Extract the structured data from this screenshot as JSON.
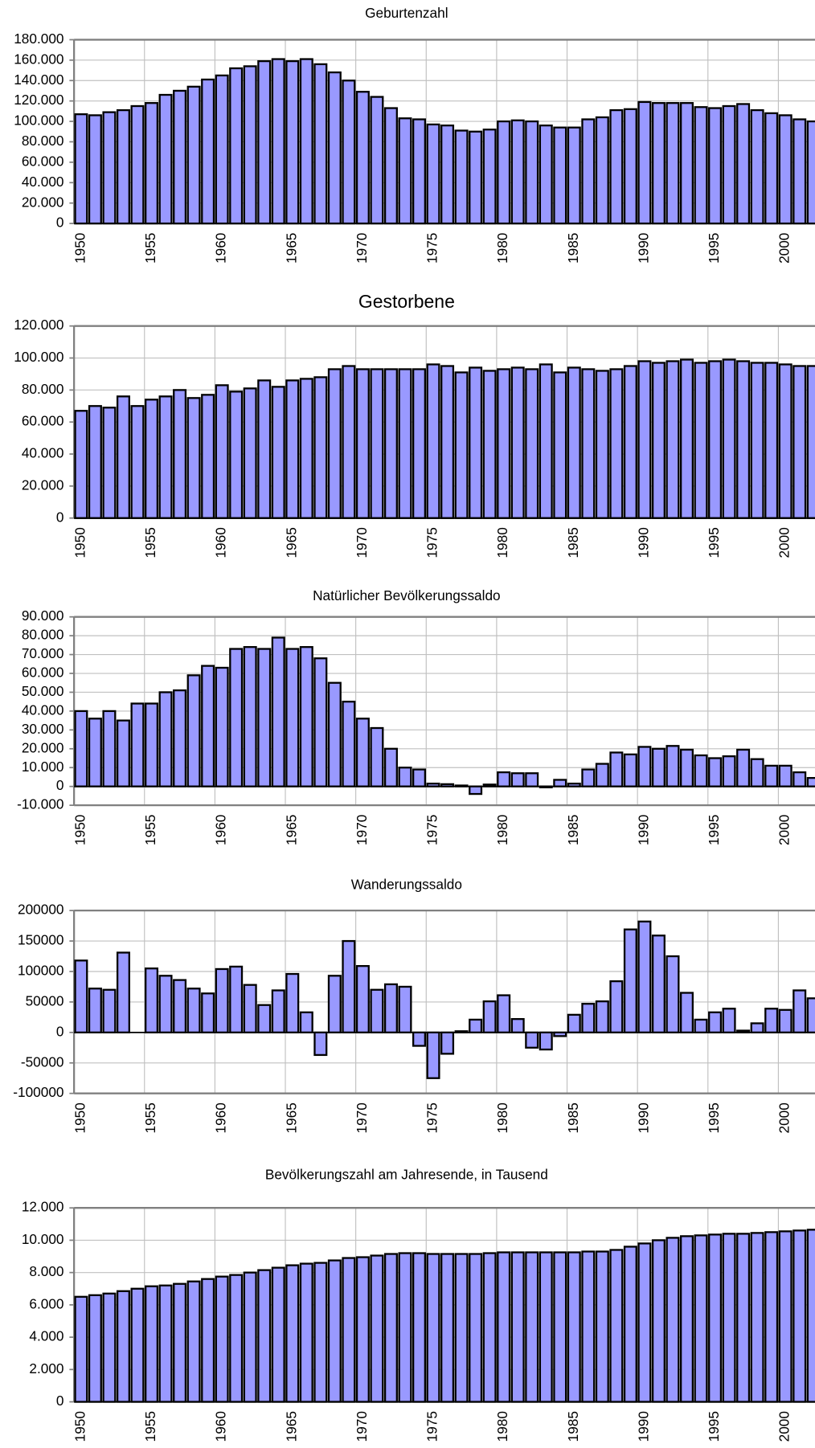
{
  "chart_data": [
    {
      "type": "bar",
      "title": "Geburtenzahl",
      "color": "#9999ff",
      "grid": true,
      "categories": [
        "1950",
        null,
        null,
        null,
        null,
        "1955",
        null,
        null,
        null,
        null,
        "1960",
        null,
        null,
        null,
        null,
        "1965",
        null,
        null,
        null,
        null,
        "1970",
        null,
        null,
        null,
        null,
        "1975",
        null,
        null,
        null,
        null,
        "1980",
        null,
        null,
        null,
        null,
        "1985",
        null,
        null,
        null,
        null,
        "1990",
        null,
        null,
        null,
        null,
        "1995",
        null,
        null,
        null,
        null,
        "2000",
        null,
        null
      ],
      "values": [
        107000,
        106000,
        109000,
        111000,
        115000,
        118000,
        126000,
        130000,
        134000,
        141000,
        145000,
        152000,
        154000,
        159000,
        161000,
        159000,
        161000,
        156000,
        148000,
        140000,
        129000,
        124000,
        113000,
        103000,
        102000,
        97000,
        96000,
        91000,
        90000,
        92000,
        100000,
        101000,
        100000,
        96000,
        94000,
        94000,
        102000,
        104000,
        111000,
        112000,
        119000,
        118000,
        118000,
        118000,
        114000,
        113000,
        115000,
        117000,
        111000,
        108000,
        106000,
        102000,
        100000
      ],
      "ylim": [
        0,
        180000
      ],
      "yticks": [
        0,
        {
          "value": 20000,
          "label": "20.000"
        },
        {
          "value": 40000,
          "label": "40.000"
        },
        {
          "value": 60000,
          "label": "60.000"
        },
        {
          "value": 80000,
          "label": "80.000"
        },
        {
          "value": 100000,
          "label": "100.000"
        },
        {
          "value": 120000,
          "label": "120.000"
        },
        {
          "value": 140000,
          "label": "140.000"
        },
        {
          "value": 160000,
          "label": "160.000"
        },
        {
          "value": 180000,
          "label": "180.000"
        }
      ]
    },
    {
      "type": "bar",
      "title": "Gestorbene",
      "color": "#9999ff",
      "grid": true,
      "categories": [
        "1950",
        null,
        null,
        null,
        null,
        "1955",
        null,
        null,
        null,
        null,
        "1960",
        null,
        null,
        null,
        null,
        "1965",
        null,
        null,
        null,
        null,
        "1970",
        null,
        null,
        null,
        null,
        "1975",
        null,
        null,
        null,
        null,
        "1980",
        null,
        null,
        null,
        null,
        "1985",
        null,
        null,
        null,
        null,
        "1990",
        null,
        null,
        null,
        null,
        "1995",
        null,
        null,
        null,
        null,
        "2000",
        null,
        null
      ],
      "values": [
        67000,
        70000,
        69000,
        76000,
        70000,
        74000,
        76000,
        80000,
        75000,
        77000,
        83000,
        79000,
        81000,
        86000,
        82000,
        86000,
        87000,
        88000,
        93000,
        95000,
        93000,
        93000,
        93000,
        93000,
        93000,
        96000,
        95000,
        91000,
        94000,
        92000,
        93000,
        94000,
        93000,
        96000,
        91000,
        94000,
        93000,
        92000,
        93000,
        95000,
        98000,
        97000,
        98000,
        99000,
        97000,
        98000,
        99000,
        98000,
        97000,
        97000,
        96000,
        95000,
        95000
      ],
      "ylim": [
        0,
        120000
      ],
      "yticks": [
        0,
        {
          "value": 20000,
          "label": "20.000"
        },
        {
          "value": 40000,
          "label": "40.000"
        },
        {
          "value": 60000,
          "label": "60.000"
        },
        {
          "value": 80000,
          "label": "80.000"
        },
        {
          "value": 100000,
          "label": "100.000"
        },
        {
          "value": 120000,
          "label": "120.000"
        }
      ]
    },
    {
      "type": "bar",
      "title": "Natürlicher Bevölkerungssaldo",
      "color": "#9999ff",
      "grid": true,
      "categories": [
        "1950",
        null,
        null,
        null,
        null,
        "1955",
        null,
        null,
        null,
        null,
        "1960",
        null,
        null,
        null,
        null,
        "1965",
        null,
        null,
        null,
        null,
        "1970",
        null,
        null,
        null,
        null,
        "1975",
        null,
        null,
        null,
        null,
        "1980",
        null,
        null,
        null,
        null,
        "1985",
        null,
        null,
        null,
        null,
        "1990",
        null,
        null,
        null,
        null,
        "1995",
        null,
        null,
        null,
        null,
        "2000",
        null,
        null
      ],
      "values": [
        40000,
        36000,
        40000,
        35000,
        44000,
        44000,
        50000,
        51000,
        59000,
        64000,
        63000,
        73000,
        74000,
        73000,
        79000,
        73000,
        74000,
        68000,
        55000,
        45000,
        36000,
        31000,
        20000,
        10000,
        9000,
        1500,
        1200,
        500,
        -4000,
        1000,
        7500,
        7000,
        7000,
        -500,
        3500,
        1500,
        9000,
        12000,
        18000,
        17000,
        21000,
        20000,
        21500,
        19500,
        16500,
        15000,
        16000,
        19500,
        14500,
        11000,
        11000,
        7500,
        4500
      ],
      "ylim": [
        -10000,
        90000
      ],
      "yticks": [
        {
          "value": -10000,
          "label": "-10.000"
        },
        0,
        {
          "value": 10000,
          "label": "10.000"
        },
        {
          "value": 20000,
          "label": "20.000"
        },
        {
          "value": 30000,
          "label": "30.000"
        },
        {
          "value": 40000,
          "label": "40.000"
        },
        {
          "value": 50000,
          "label": "50.000"
        },
        {
          "value": 60000,
          "label": "60.000"
        },
        {
          "value": 70000,
          "label": "70.000"
        },
        {
          "value": 80000,
          "label": "80.000"
        },
        {
          "value": 90000,
          "label": "90.000"
        }
      ]
    },
    {
      "type": "bar",
      "title": "Wanderungssaldo",
      "color": "#9999ff",
      "grid": true,
      "categories": [
        "1950",
        null,
        null,
        null,
        null,
        "1955",
        null,
        null,
        null,
        null,
        "1960",
        null,
        null,
        null,
        null,
        "1965",
        null,
        null,
        null,
        null,
        "1970",
        null,
        null,
        null,
        null,
        "1975",
        null,
        null,
        null,
        null,
        "1980",
        null,
        null,
        null,
        null,
        "1985",
        null,
        null,
        null,
        null,
        "1990",
        null,
        null,
        null,
        null,
        "1995",
        null,
        null,
        null,
        null,
        "2000",
        null,
        null
      ],
      "values": [
        118000,
        72000,
        70000,
        131000,
        null,
        105000,
        93000,
        86000,
        72000,
        64000,
        104000,
        108000,
        78000,
        45000,
        69000,
        96000,
        33000,
        -37000,
        93000,
        150000,
        109000,
        70000,
        79000,
        75000,
        -22000,
        -75000,
        -35000,
        2000,
        21000,
        51000,
        61000,
        22000,
        -25000,
        -28000,
        -6000,
        29000,
        47000,
        51000,
        84000,
        169000,
        182000,
        159000,
        125000,
        65000,
        21000,
        33000,
        39000,
        3000,
        15000,
        39000,
        37000,
        69000,
        56000
      ],
      "ylim": [
        -100000,
        200000
      ],
      "yticks": [
        -100000,
        -50000,
        0,
        50000,
        100000,
        150000,
        200000
      ]
    },
    {
      "type": "bar",
      "title": "Bevölkerungszahl am Jahresende, in Tausend",
      "color": "#9999ff",
      "grid": true,
      "categories": [
        "1950",
        null,
        null,
        null,
        null,
        "1955",
        null,
        null,
        null,
        null,
        "1960",
        null,
        null,
        null,
        null,
        "1965",
        null,
        null,
        null,
        null,
        "1970",
        null,
        null,
        null,
        null,
        "1975",
        null,
        null,
        null,
        null,
        "1980",
        null,
        null,
        null,
        null,
        "1985",
        null,
        null,
        null,
        null,
        "1990",
        null,
        null,
        null,
        null,
        "1995",
        null,
        null,
        null,
        null,
        "2000",
        null,
        null
      ],
      "values": [
        6500,
        6600,
        6700,
        6850,
        7000,
        7150,
        7200,
        7300,
        7450,
        7600,
        7750,
        7850,
        8000,
        8150,
        8300,
        8450,
        8550,
        8600,
        8750,
        8900,
        8950,
        9050,
        9150,
        9200,
        9200,
        9150,
        9150,
        9150,
        9150,
        9200,
        9250,
        9250,
        9250,
        9250,
        9250,
        9250,
        9300,
        9300,
        9400,
        9600,
        9800,
        10000,
        10150,
        10250,
        10300,
        10350,
        10400,
        10400,
        10450,
        10500,
        10550,
        10600,
        10650
      ],
      "ylim": [
        0,
        12000
      ],
      "yticks": [
        0,
        {
          "value": 2000,
          "label": "2.000"
        },
        {
          "value": 4000,
          "label": "4.000"
        },
        {
          "value": 6000,
          "label": "6.000"
        },
        {
          "value": 8000,
          "label": "8.000"
        },
        {
          "value": 10000,
          "label": "10.000"
        },
        {
          "value": 12000,
          "label": "12.000"
        }
      ]
    }
  ]
}
